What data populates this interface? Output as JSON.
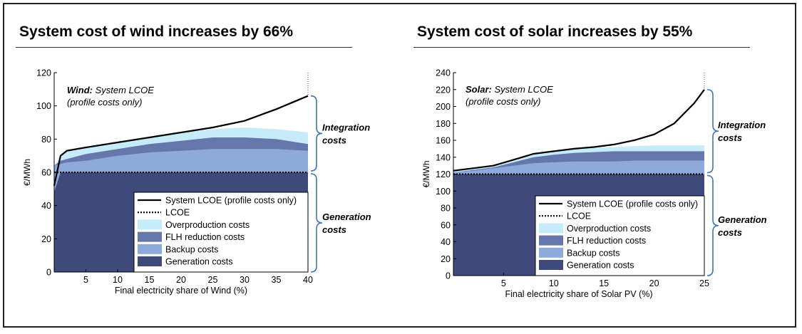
{
  "panels": [
    {
      "title": "System cost of wind increases by 66%"
    },
    {
      "title": "System cost of solar increases by 55%"
    }
  ],
  "colors": {
    "overproduction": "#c6ecfa",
    "flh": "#6677ad",
    "backup": "#8eaadb",
    "generation": "#3f4a7a",
    "brace": "#3e74b8"
  },
  "chart_data": [
    {
      "type": "area",
      "ylabel": "€/MWh",
      "xlabel": "Final electricity share of Wind (%)",
      "xlim": [
        0,
        40
      ],
      "ylim": [
        0,
        120
      ],
      "xticks": [
        5,
        10,
        15,
        20,
        25,
        30,
        35,
        40
      ],
      "yticks": [
        0,
        20,
        40,
        60,
        80,
        100,
        120
      ],
      "annotation": {
        "bold": "Wind:",
        "rest": " System LCOE",
        "line2": "(profile costs only)"
      },
      "brace_labels": {
        "upper": [
          "Integration",
          "costs"
        ],
        "lower": [
          "Generation",
          "costs"
        ]
      },
      "legend": {
        "position": "bottom-right",
        "entries": [
          "System LCOE (profile costs only)",
          "LCOE",
          "Overproduction costs",
          "FLH reduction costs",
          "Backup costs",
          "Generation costs"
        ]
      },
      "lcoe": 60,
      "x": [
        0,
        1,
        2,
        5,
        10,
        15,
        20,
        25,
        30,
        35,
        40
      ],
      "series": [
        {
          "name": "Generation costs",
          "values": [
            48,
            60,
            60,
            60,
            60,
            60,
            60,
            60,
            60,
            60,
            60
          ]
        },
        {
          "name": "Backup costs",
          "values": [
            64,
            65,
            66,
            67,
            70,
            72,
            73,
            74,
            74,
            74,
            73
          ]
        },
        {
          "name": "FLH reduction costs",
          "values": [
            64,
            67,
            68,
            71,
            74,
            77,
            79,
            81,
            81,
            80,
            77
          ]
        },
        {
          "name": "Overproduction costs",
          "values": [
            64,
            70,
            73,
            75,
            78,
            81,
            84,
            86,
            87,
            86,
            84
          ]
        },
        {
          "name": "System LCOE (profile costs only)",
          "values": [
            52,
            70,
            73,
            75,
            78,
            81,
            84,
            87,
            91,
            98,
            106
          ]
        }
      ]
    },
    {
      "type": "area",
      "ylabel": "€/MWh",
      "xlabel": "Final electricity share of Solar PV (%)",
      "xlim": [
        0,
        25
      ],
      "ylim": [
        0,
        240
      ],
      "xticks": [
        5,
        10,
        15,
        20,
        25
      ],
      "yticks": [
        0,
        20,
        40,
        60,
        80,
        100,
        120,
        140,
        160,
        180,
        200,
        220,
        240
      ],
      "annotation": {
        "bold": "Solar:",
        "rest": " System LCOE",
        "line2": "(profile costs only)"
      },
      "brace_labels": {
        "upper": [
          "Integration",
          "costs"
        ],
        "lower": [
          "Generation",
          "costs"
        ]
      },
      "legend": {
        "position": "bottom-right",
        "entries": [
          "System LCOE (profile costs only)",
          "LCOE",
          "Overproduction costs",
          "FLH reduction costs",
          "Backup costs",
          "Generation costs"
        ]
      },
      "lcoe": 120,
      "x": [
        0,
        2,
        4,
        6,
        8,
        10,
        12,
        14,
        16,
        18,
        20,
        22,
        24,
        25
      ],
      "series": [
        {
          "name": "Generation costs",
          "values": [
            120,
            120,
            120,
            120,
            120,
            120,
            120,
            120,
            120,
            120,
            120,
            120,
            120,
            120
          ]
        },
        {
          "name": "Backup costs",
          "values": [
            122,
            124,
            127,
            130,
            133,
            134,
            135,
            135,
            135,
            136,
            136,
            136,
            136,
            136
          ]
        },
        {
          "name": "FLH reduction costs",
          "values": [
            122,
            125,
            128,
            134,
            140,
            143,
            145,
            146,
            147,
            147,
            147,
            147,
            147,
            147
          ]
        },
        {
          "name": "Overproduction costs",
          "values": [
            124,
            127,
            129,
            136,
            143,
            147,
            149,
            151,
            152,
            153,
            154,
            154,
            154,
            154
          ]
        },
        {
          "name": "System LCOE (profile costs only)",
          "values": [
            124,
            127,
            130,
            137,
            144,
            147,
            150,
            152,
            155,
            160,
            167,
            180,
            204,
            220
          ]
        }
      ]
    }
  ]
}
